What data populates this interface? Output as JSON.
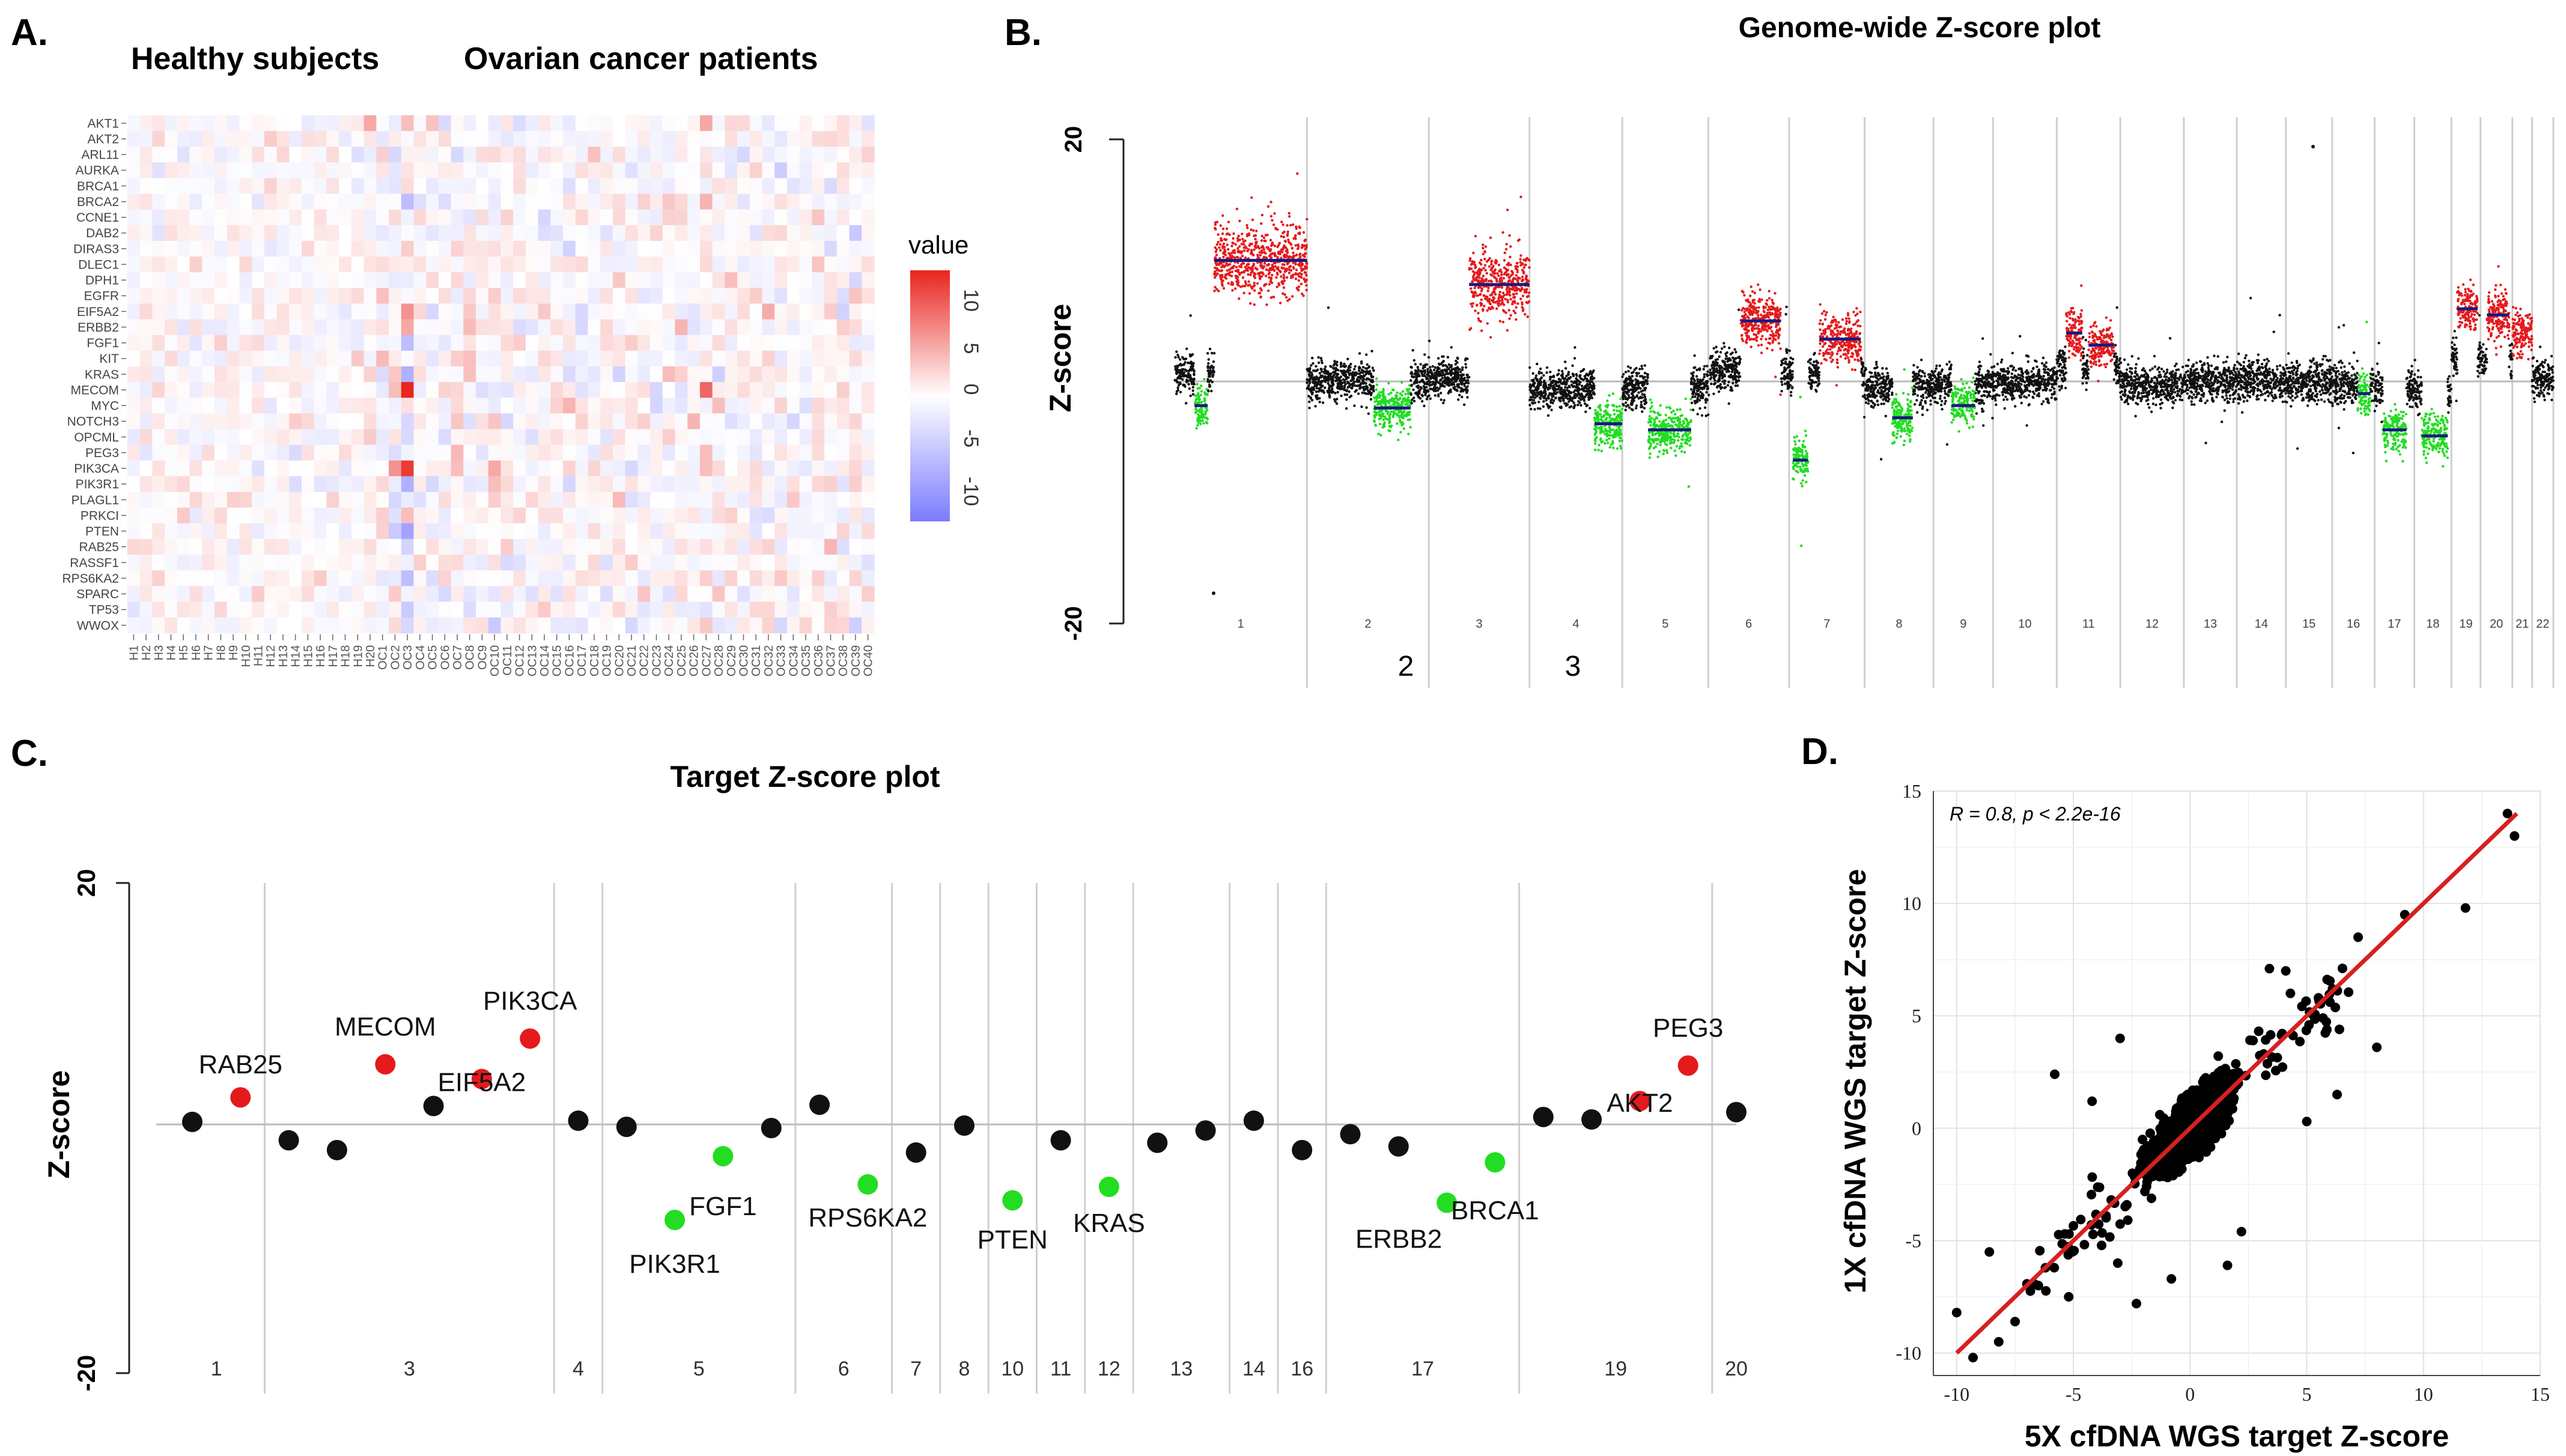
{
  "colors": {
    "red": "#e41a1c",
    "green": "#22dd22",
    "black": "#111111",
    "navy": "#1a1a80",
    "grid": "#cfcfcf",
    "heat_hi": "#e8251e",
    "heat_lo": "#7b7bff",
    "fit": "#d62020"
  },
  "chart_data": [
    {
      "panel": "A.",
      "type": "heatmap",
      "group_labels": [
        "Healthy subjects",
        "Ovarian cancer patients"
      ],
      "legend_title": "value",
      "legend_ticks": [
        "10",
        "5",
        "0",
        "-5",
        "-10"
      ],
      "rows": [
        "AKT1",
        "AKT2",
        "ARL11",
        "AURKA",
        "BRCA1",
        "BRCA2",
        "CCNE1",
        "DAB2",
        "DIRAS3",
        "DLEC1",
        "DPH1",
        "EGFR",
        "EIF5A2",
        "ERBB2",
        "FGF1",
        "KIT",
        "KRAS",
        "MECOM",
        "MYC",
        "NOTCH3",
        "OPCML",
        "PEG3",
        "PIK3CA",
        "PIK3R1",
        "PLAGL1",
        "PRKCI",
        "PTEN",
        "RAB25",
        "RASSF1",
        "RPS6KA2",
        "SPARC",
        "TP53",
        "WWOX"
      ],
      "columns": [
        "H1",
        "H2",
        "H3",
        "H4",
        "H5",
        "H6",
        "H7",
        "H8",
        "H9",
        "H10",
        "H11",
        "H12",
        "H13",
        "H14",
        "H15",
        "H16",
        "H17",
        "H18",
        "H19",
        "H20",
        "OC1",
        "OC2",
        "OC3",
        "OC4",
        "OC5",
        "OC6",
        "OC7",
        "OC8",
        "OC9",
        "OC10",
        "OC11",
        "OC12",
        "OC13",
        "OC14",
        "OC15",
        "OC16",
        "OC17",
        "OC18",
        "OC19",
        "OC20",
        "OC21",
        "OC22",
        "OC23",
        "OC24",
        "OC25",
        "OC26",
        "OC27",
        "OC28",
        "OC29",
        "OC30",
        "OC31",
        "OC32",
        "OC33",
        "OC34",
        "OC35",
        "OC36",
        "OC37",
        "OC38",
        "OC39",
        "OC40"
      ],
      "value_range": [
        -10,
        10
      ]
    },
    {
      "panel": "B.",
      "type": "scatter",
      "title": "Genome-wide Z-score plot",
      "ylabel": "Z-score",
      "ylim": [
        -20,
        20
      ],
      "y_ticks": [
        "20",
        "-20"
      ],
      "chromosomes": [
        {
          "chr": "1",
          "n": 1000,
          "call": "gain",
          "base": 2,
          "seg": [
            {
              "s": 0.15,
              "e": 0.25,
              "v": -2
            },
            {
              "s": 0.3,
              "e": 1,
              "v": 10
            }
          ]
        },
        {
          "chr": "2",
          "n": 920,
          "call": "mixed",
          "base": 0,
          "seg": [
            {
              "s": 0.55,
              "e": 0.85,
              "v": -2.2
            }
          ]
        },
        {
          "chr": "3",
          "n": 760,
          "call": "gain",
          "base": 1,
          "seg": [
            {
              "s": 0.4,
              "e": 1,
              "v": 8
            }
          ]
        },
        {
          "chr": "4",
          "n": 700,
          "call": "loss",
          "base": -2,
          "seg": [
            {
              "s": 0.7,
              "e": 1,
              "v": -3.5
            }
          ]
        },
        {
          "chr": "5",
          "n": 650,
          "call": "loss",
          "base": -2,
          "seg": [
            {
              "s": 0.3,
              "e": 0.8,
              "v": -4
            }
          ]
        },
        {
          "chr": "6",
          "n": 610,
          "call": "gain",
          "base": 3,
          "seg": [
            {
              "s": 0.4,
              "e": 0.9,
              "v": 5
            }
          ]
        },
        {
          "chr": "7",
          "n": 570,
          "call": "mixed",
          "base": 2,
          "seg": [
            {
              "s": 0.05,
              "e": 0.25,
              "v": -6.5
            },
            {
              "s": 0.4,
              "e": 0.95,
              "v": 3.5
            }
          ]
        },
        {
          "chr": "8",
          "n": 520,
          "call": "loss",
          "base": -1,
          "seg": [
            {
              "s": 0.4,
              "e": 0.7,
              "v": -3
            }
          ]
        },
        {
          "chr": "9",
          "n": 450,
          "call": "loss",
          "base": -1,
          "seg": [
            {
              "s": 0.3,
              "e": 0.7,
              "v": -2
            }
          ]
        },
        {
          "chr": "10",
          "n": 480,
          "call": "neutral",
          "base": 0,
          "seg": []
        },
        {
          "chr": "11",
          "n": 480,
          "call": "gain",
          "base": 4,
          "seg": [
            {
              "s": 0.15,
              "e": 0.4,
              "v": 4
            },
            {
              "s": 0.5,
              "e": 0.9,
              "v": 3
            }
          ]
        },
        {
          "chr": "12",
          "n": 480,
          "call": "neutral",
          "base": -1,
          "seg": []
        },
        {
          "chr": "13",
          "n": 400,
          "call": "neutral",
          "base": 0,
          "seg": []
        },
        {
          "chr": "14",
          "n": 370,
          "call": "neutral",
          "base": 0,
          "seg": []
        },
        {
          "chr": "15",
          "n": 350,
          "call": "neutral",
          "base": 0,
          "seg": []
        },
        {
          "chr": "16",
          "n": 320,
          "call": "mixed",
          "base": -1,
          "seg": [
            {
              "s": 0.6,
              "e": 0.9,
              "v": -1
            }
          ]
        },
        {
          "chr": "17",
          "n": 300,
          "call": "loss",
          "base": -2,
          "seg": [
            {
              "s": 0.2,
              "e": 0.8,
              "v": -4
            }
          ]
        },
        {
          "chr": "18",
          "n": 280,
          "call": "loss",
          "base": -3,
          "seg": [
            {
              "s": 0.2,
              "e": 0.9,
              "v": -4.5
            }
          ]
        },
        {
          "chr": "19",
          "n": 220,
          "call": "gain",
          "base": 6,
          "seg": [
            {
              "s": 0.2,
              "e": 0.9,
              "v": 6
            }
          ]
        },
        {
          "chr": "20",
          "n": 240,
          "call": "gain",
          "base": 5,
          "seg": [
            {
              "s": 0.2,
              "e": 0.9,
              "v": 5.5
            }
          ]
        },
        {
          "chr": "21",
          "n": 150,
          "call": "gain",
          "base": 4,
          "seg": []
        },
        {
          "chr": "22",
          "n": 160,
          "call": "neutral",
          "base": 1,
          "seg": []
        }
      ],
      "secondary_labels": [
        "2",
        "3"
      ]
    },
    {
      "panel": "C.",
      "type": "scatter",
      "title": "Target Z-score plot",
      "ylabel": "Z-score",
      "ylim": [
        -20,
        20
      ],
      "y_ticks": [
        "20",
        "-20"
      ],
      "sections": [
        {
          "label": "1",
          "span": 2
        },
        {
          "label": "3",
          "span": 6
        },
        {
          "label": "4",
          "span": 1
        },
        {
          "label": "5",
          "span": 4
        },
        {
          "label": "6",
          "span": 2
        },
        {
          "label": "7",
          "span": 1
        },
        {
          "label": "8",
          "span": 1
        },
        {
          "label": "10",
          "span": 1
        },
        {
          "label": "11",
          "span": 1
        },
        {
          "label": "12",
          "span": 1
        },
        {
          "label": "13",
          "span": 2
        },
        {
          "label": "14",
          "span": 1
        },
        {
          "label": "16",
          "span": 1
        },
        {
          "label": "17",
          "span": 4
        },
        {
          "label": "19",
          "span": 4
        },
        {
          "label": "20",
          "span": 1
        }
      ],
      "points": [
        {
          "v": 0.5,
          "c": "black",
          "label": ""
        },
        {
          "v": 2.5,
          "c": "red",
          "label": "RAB25"
        },
        {
          "v": -1,
          "c": "black",
          "label": ""
        },
        {
          "v": -1.8,
          "c": "black",
          "label": ""
        },
        {
          "v": 5.2,
          "c": "red",
          "label": "MECOM"
        },
        {
          "v": 1.8,
          "c": "black",
          "label": ""
        },
        {
          "v": 4,
          "c": "red",
          "label": "EIF5A2"
        },
        {
          "v": 7.3,
          "c": "red",
          "label": "PIK3CA"
        },
        {
          "v": 0.6,
          "c": "black",
          "label": ""
        },
        {
          "v": 0.1,
          "c": "black",
          "label": ""
        },
        {
          "v": -7.5,
          "c": "green",
          "label": "PIK3R1"
        },
        {
          "v": -2.3,
          "c": "green",
          "label": "FGF1"
        },
        {
          "v": 0,
          "c": "black",
          "label": ""
        },
        {
          "v": 1.9,
          "c": "black",
          "label": ""
        },
        {
          "v": -4.6,
          "c": "green",
          "label": "RPS6KA2"
        },
        {
          "v": -2,
          "c": "black",
          "label": ""
        },
        {
          "v": 0.2,
          "c": "black",
          "label": ""
        },
        {
          "v": -5.9,
          "c": "green",
          "label": "PTEN"
        },
        {
          "v": -1,
          "c": "black",
          "label": ""
        },
        {
          "v": -4.8,
          "c": "green",
          "label": "KRAS"
        },
        {
          "v": -1.2,
          "c": "black",
          "label": ""
        },
        {
          "v": -0.2,
          "c": "black",
          "label": ""
        },
        {
          "v": 0.6,
          "c": "black",
          "label": ""
        },
        {
          "v": -1.8,
          "c": "black",
          "label": ""
        },
        {
          "v": -0.5,
          "c": "black",
          "label": ""
        },
        {
          "v": -1.5,
          "c": "black",
          "label": ""
        },
        {
          "v": -6.1,
          "c": "green",
          "label": "ERBB2"
        },
        {
          "v": -2.8,
          "c": "green",
          "label": "BRCA1"
        },
        {
          "v": 0.9,
          "c": "black",
          "label": ""
        },
        {
          "v": 0.7,
          "c": "black",
          "label": ""
        },
        {
          "v": 2.2,
          "c": "red",
          "label": "AKT2"
        },
        {
          "v": 5.1,
          "c": "red",
          "label": "PEG3"
        },
        {
          "v": 1.3,
          "c": "black",
          "label": ""
        }
      ]
    },
    {
      "panel": "D.",
      "type": "scatter",
      "xlabel": "5X cfDNA WGS target Z-score",
      "ylabel": "1X cfDNA WGS target Z-score",
      "annotation": "R = 0.8, p < 2.2e-16",
      "xlim": [
        -11,
        15
      ],
      "ylim": [
        -11,
        15
      ],
      "x_ticks": [
        "-10",
        "-5",
        "0",
        "5",
        "10",
        "15"
      ],
      "y_ticks": [
        "-10",
        "-5",
        "0",
        "5",
        "10",
        "15"
      ],
      "fit": {
        "slope": 1.0,
        "intercept": 0,
        "from": -10,
        "to": 14
      },
      "n_points": 1800,
      "outliers": [
        [
          13.6,
          14
        ],
        [
          13.9,
          13
        ],
        [
          11.8,
          9.8
        ],
        [
          9.2,
          9.5
        ],
        [
          7.2,
          8.5
        ],
        [
          6.1,
          6.2
        ],
        [
          5.5,
          5.8
        ],
        [
          6.4,
          4.4
        ],
        [
          4.3,
          6.0
        ],
        [
          3.4,
          7.1
        ],
        [
          4.1,
          7.0
        ],
        [
          -10,
          -8.2
        ],
        [
          -9.3,
          -10.2
        ],
        [
          -8.2,
          -9.5
        ],
        [
          -7.5,
          -8.6
        ],
        [
          -6.5,
          -7.0
        ],
        [
          -5.2,
          -7.5
        ],
        [
          -8.6,
          -5.5
        ],
        [
          -2.3,
          -7.8
        ],
        [
          -0.8,
          -6.7
        ],
        [
          -3.1,
          -6.0
        ],
        [
          2.2,
          -4.6
        ],
        [
          1.6,
          -6.1
        ],
        [
          5.0,
          0.3
        ],
        [
          6.3,
          1.5
        ],
        [
          -5.8,
          2.4
        ],
        [
          -4.2,
          1.2
        ],
        [
          8.0,
          3.6
        ],
        [
          -3,
          4
        ]
      ]
    }
  ]
}
